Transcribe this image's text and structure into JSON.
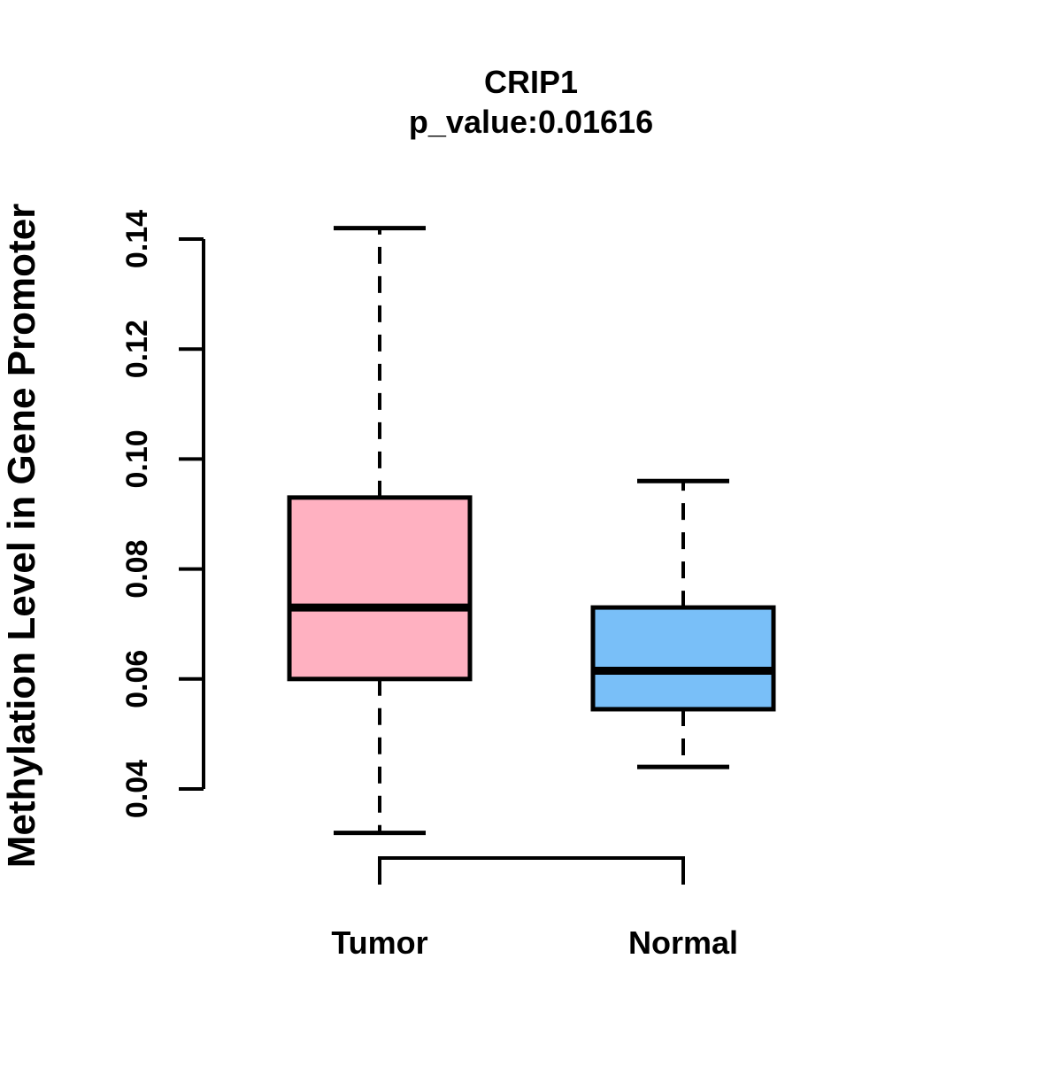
{
  "chart_data": {
    "type": "boxplot",
    "title": "CRIP1",
    "subtitle": "p_value:0.01616",
    "ylabel": "Methylation Level in Gene Promoter",
    "xlabel": "",
    "categories": [
      "Tumor",
      "Normal"
    ],
    "yticks": [
      0.04,
      0.06,
      0.08,
      0.1,
      0.12,
      0.14
    ],
    "ytick_labels": [
      "0.04",
      "0.06",
      "0.08",
      "0.10",
      "0.12",
      "0.14"
    ],
    "axis_value_range": [
      0.04,
      0.14
    ],
    "grid": false,
    "legend": "none",
    "boxes": [
      {
        "category": "Tumor",
        "lower_whisker": 0.032,
        "q1": 0.06,
        "median": 0.073,
        "q3": 0.093,
        "upper_whisker": 0.142,
        "fill_color": "#FFB1C1"
      },
      {
        "category": "Normal",
        "lower_whisker": 0.044,
        "q1": 0.0545,
        "median": 0.0615,
        "q3": 0.073,
        "upper_whisker": 0.096,
        "fill_color": "#79BFF8"
      }
    ],
    "line_color": "#000000",
    "background_color": "#FFFFFF"
  }
}
